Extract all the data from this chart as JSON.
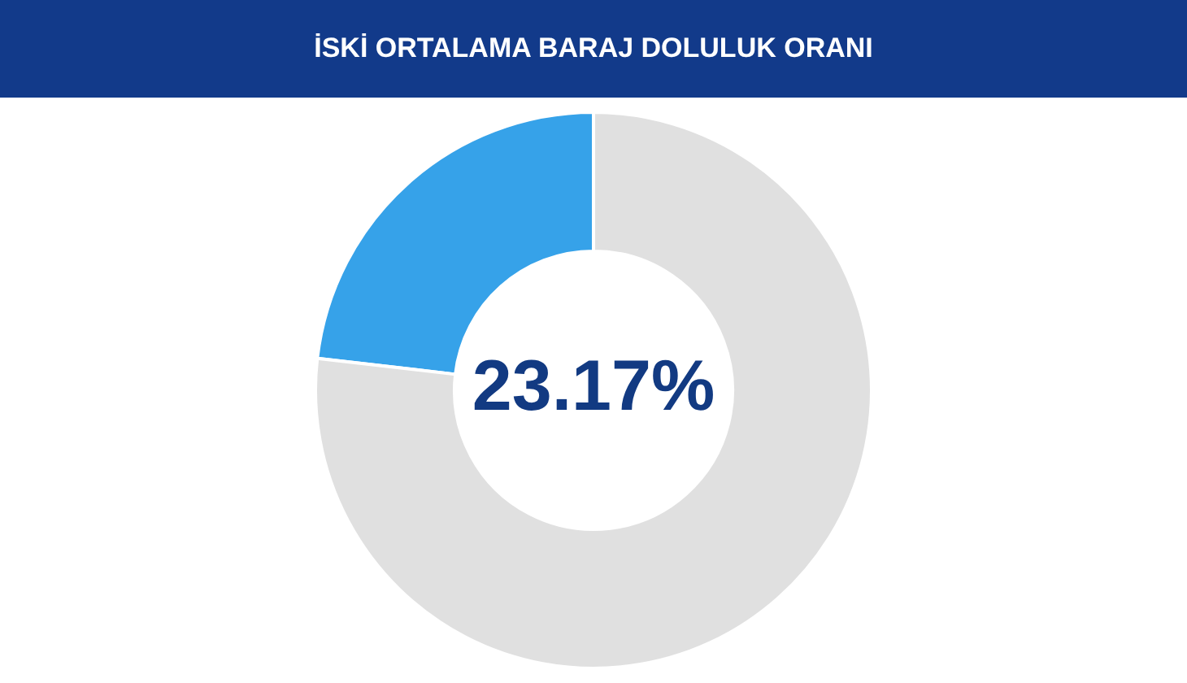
{
  "chart_data": {
    "type": "donut",
    "title": "İSKİ ORTALAMA BARAJ DOLULUK ORANI",
    "categories": [
      null,
      null
    ],
    "values": [
      23.17,
      76.83
    ],
    "colors": [
      "#36a2e9",
      "#e0e0e0"
    ],
    "value_labels": [
      "23.17%",
      null
    ],
    "legend": false
  }
}
